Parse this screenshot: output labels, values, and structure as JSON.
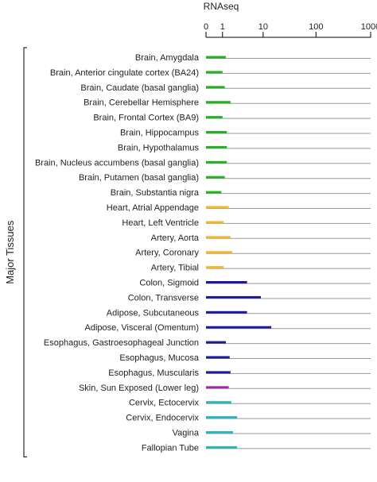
{
  "chart_data": {
    "type": "bar",
    "orientation": "horizontal",
    "x_scale": "log1p",
    "xlabel": "RNAseq",
    "group_label": "Major Tissues",
    "xlim": [
      0,
      1000
    ],
    "ticks": [
      {
        "label": "0",
        "value": 0
      },
      {
        "label": "1",
        "value": 1
      },
      {
        "label": "10",
        "value": 10
      },
      {
        "label": "100",
        "value": 100
      },
      {
        "label": "1000",
        "value": 1000
      }
    ],
    "grid": false,
    "legend": "none",
    "categories": [
      "Brain, Amygdala",
      "Brain, Anterior cingulate cortex (BA24)",
      "Brain, Caudate (basal ganglia)",
      "Brain, Cerebellar Hemisphere",
      "Brain, Frontal Cortex (BA9)",
      "Brain, Hippocampus",
      "Brain, Hypothalamus",
      "Brain, Nucleus accumbens (basal ganglia)",
      "Brain, Putamen (basal ganglia)",
      "Brain, Substantia nigra",
      "Heart, Atrial Appendage",
      "Heart, Left Ventricle",
      "Artery, Aorta",
      "Artery, Coronary",
      "Artery, Tibial",
      "Colon, Sigmoid",
      "Colon, Transverse",
      "Adipose, Subcutaneous",
      "Adipose, Visceral (Omentum)",
      "Esophagus, Gastroesophageal Junction",
      "Esophagus, Mucosa",
      "Esophagus, Muscularis",
      "Skin, Sun Exposed (Lower leg)",
      "Cervix, Ectocervix",
      "Cervix, Endocervix",
      "Vagina",
      "Fallopian Tube"
    ],
    "values": [
      1.3,
      1.0,
      1.2,
      1.8,
      1.0,
      1.4,
      1.4,
      1.4,
      1.2,
      0.9,
      1.6,
      1.1,
      1.8,
      2.0,
      1.1,
      4.6,
      9.0,
      4.6,
      14.5,
      1.3,
      1.7,
      1.8,
      1.6,
      1.9,
      2.7,
      2.1,
      2.7
    ],
    "colors": [
      "#22b222",
      "#22b222",
      "#22b222",
      "#22b222",
      "#22b222",
      "#22b222",
      "#22b222",
      "#22b222",
      "#22b222",
      "#22b222",
      "#f5b62b",
      "#f5b62b",
      "#f5b62b",
      "#f5b62b",
      "#f5b62b",
      "#1a1aa0",
      "#1a1aa0",
      "#1a1aa0",
      "#1a1aa0",
      "#1a1aa0",
      "#1a1aa0",
      "#1a1aa0",
      "#a32ba8",
      "#2ab5bd",
      "#2ab5bd",
      "#2ab5bd",
      "#2ab5bd"
    ],
    "baseline_color": "#999999"
  }
}
